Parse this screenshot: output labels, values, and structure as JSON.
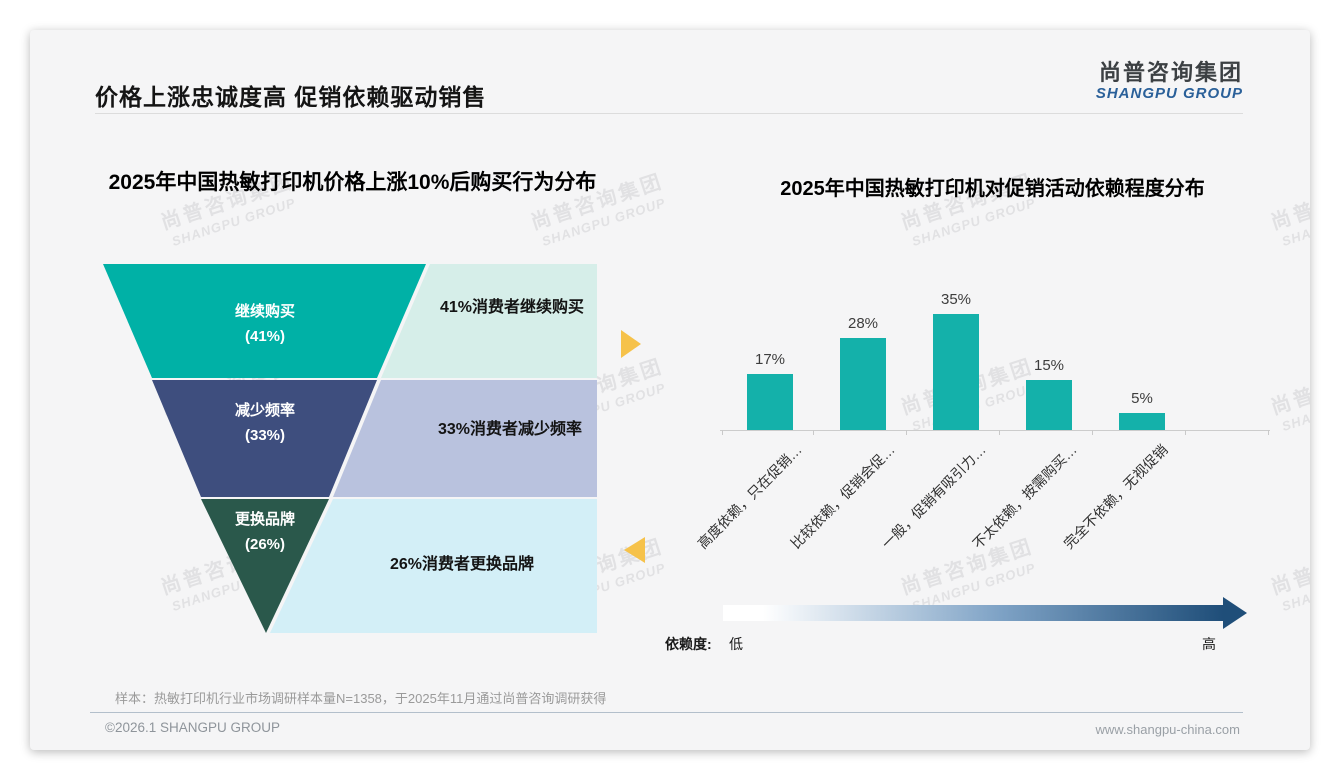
{
  "header": {
    "title": "价格上涨忠诚度高 促销依赖驱动销售",
    "logo": {
      "cn": "尚普咨询集团",
      "en": "SHANGPU GROUP",
      "en_color": "#2a6099"
    }
  },
  "watermark": {
    "cn": "尚普咨询集团",
    "en": "SHANGPU GROUP"
  },
  "left_chart": {
    "title": "2025年中国热敏打印机价格上涨10%后购买行为分布",
    "chart_data": {
      "type": "funnel",
      "segments": [
        {
          "label": "继续购买",
          "value": 41,
          "pct_label": "(41%)",
          "color": "#00b1a6",
          "desc": "41%消费者继续购买",
          "panel_color": "#d6eee9"
        },
        {
          "label": "减少频率",
          "value": 33,
          "pct_label": "(33%)",
          "color": "#3e4e7e",
          "desc": "33%消费者减少频率",
          "panel_color": "#b9c2de"
        },
        {
          "label": "更换品牌",
          "value": 26,
          "pct_label": "(26%)",
          "color": "#2a584b",
          "desc": "26%消费者更换品牌",
          "panel_color": "#d3eff7"
        }
      ],
      "accent_arrow_color": "#f6c24a"
    }
  },
  "right_chart": {
    "title": "2025年中国热敏打印机对促销活动依赖程度分布",
    "chart_data": {
      "type": "bar",
      "categories": [
        "高度依赖，只在促销…",
        "比较依赖，促销会促…",
        "一般，促销有吸引力…",
        "不太依赖，按需购买…",
        "完全不依赖，无视促销"
      ],
      "values": [
        17,
        28,
        35,
        15,
        5
      ],
      "unit": "%",
      "bar_color": "#14b1aa",
      "ylim": [
        0,
        40
      ],
      "grid": false,
      "value_labels_shown": true
    },
    "legend": {
      "label": "依赖度:",
      "low": "低",
      "high": "高"
    },
    "gradient": {
      "from": "#ffffff",
      "mid": "#7fa3c6",
      "to": "#1f4e79"
    }
  },
  "footer": {
    "note": "样本：热敏打印机行业市场调研样本量N=1358，于2025年11月通过尚普咨询调研获得",
    "copyright": "©2026.1 SHANGPU GROUP",
    "website": "www.shangpu-china.com"
  }
}
